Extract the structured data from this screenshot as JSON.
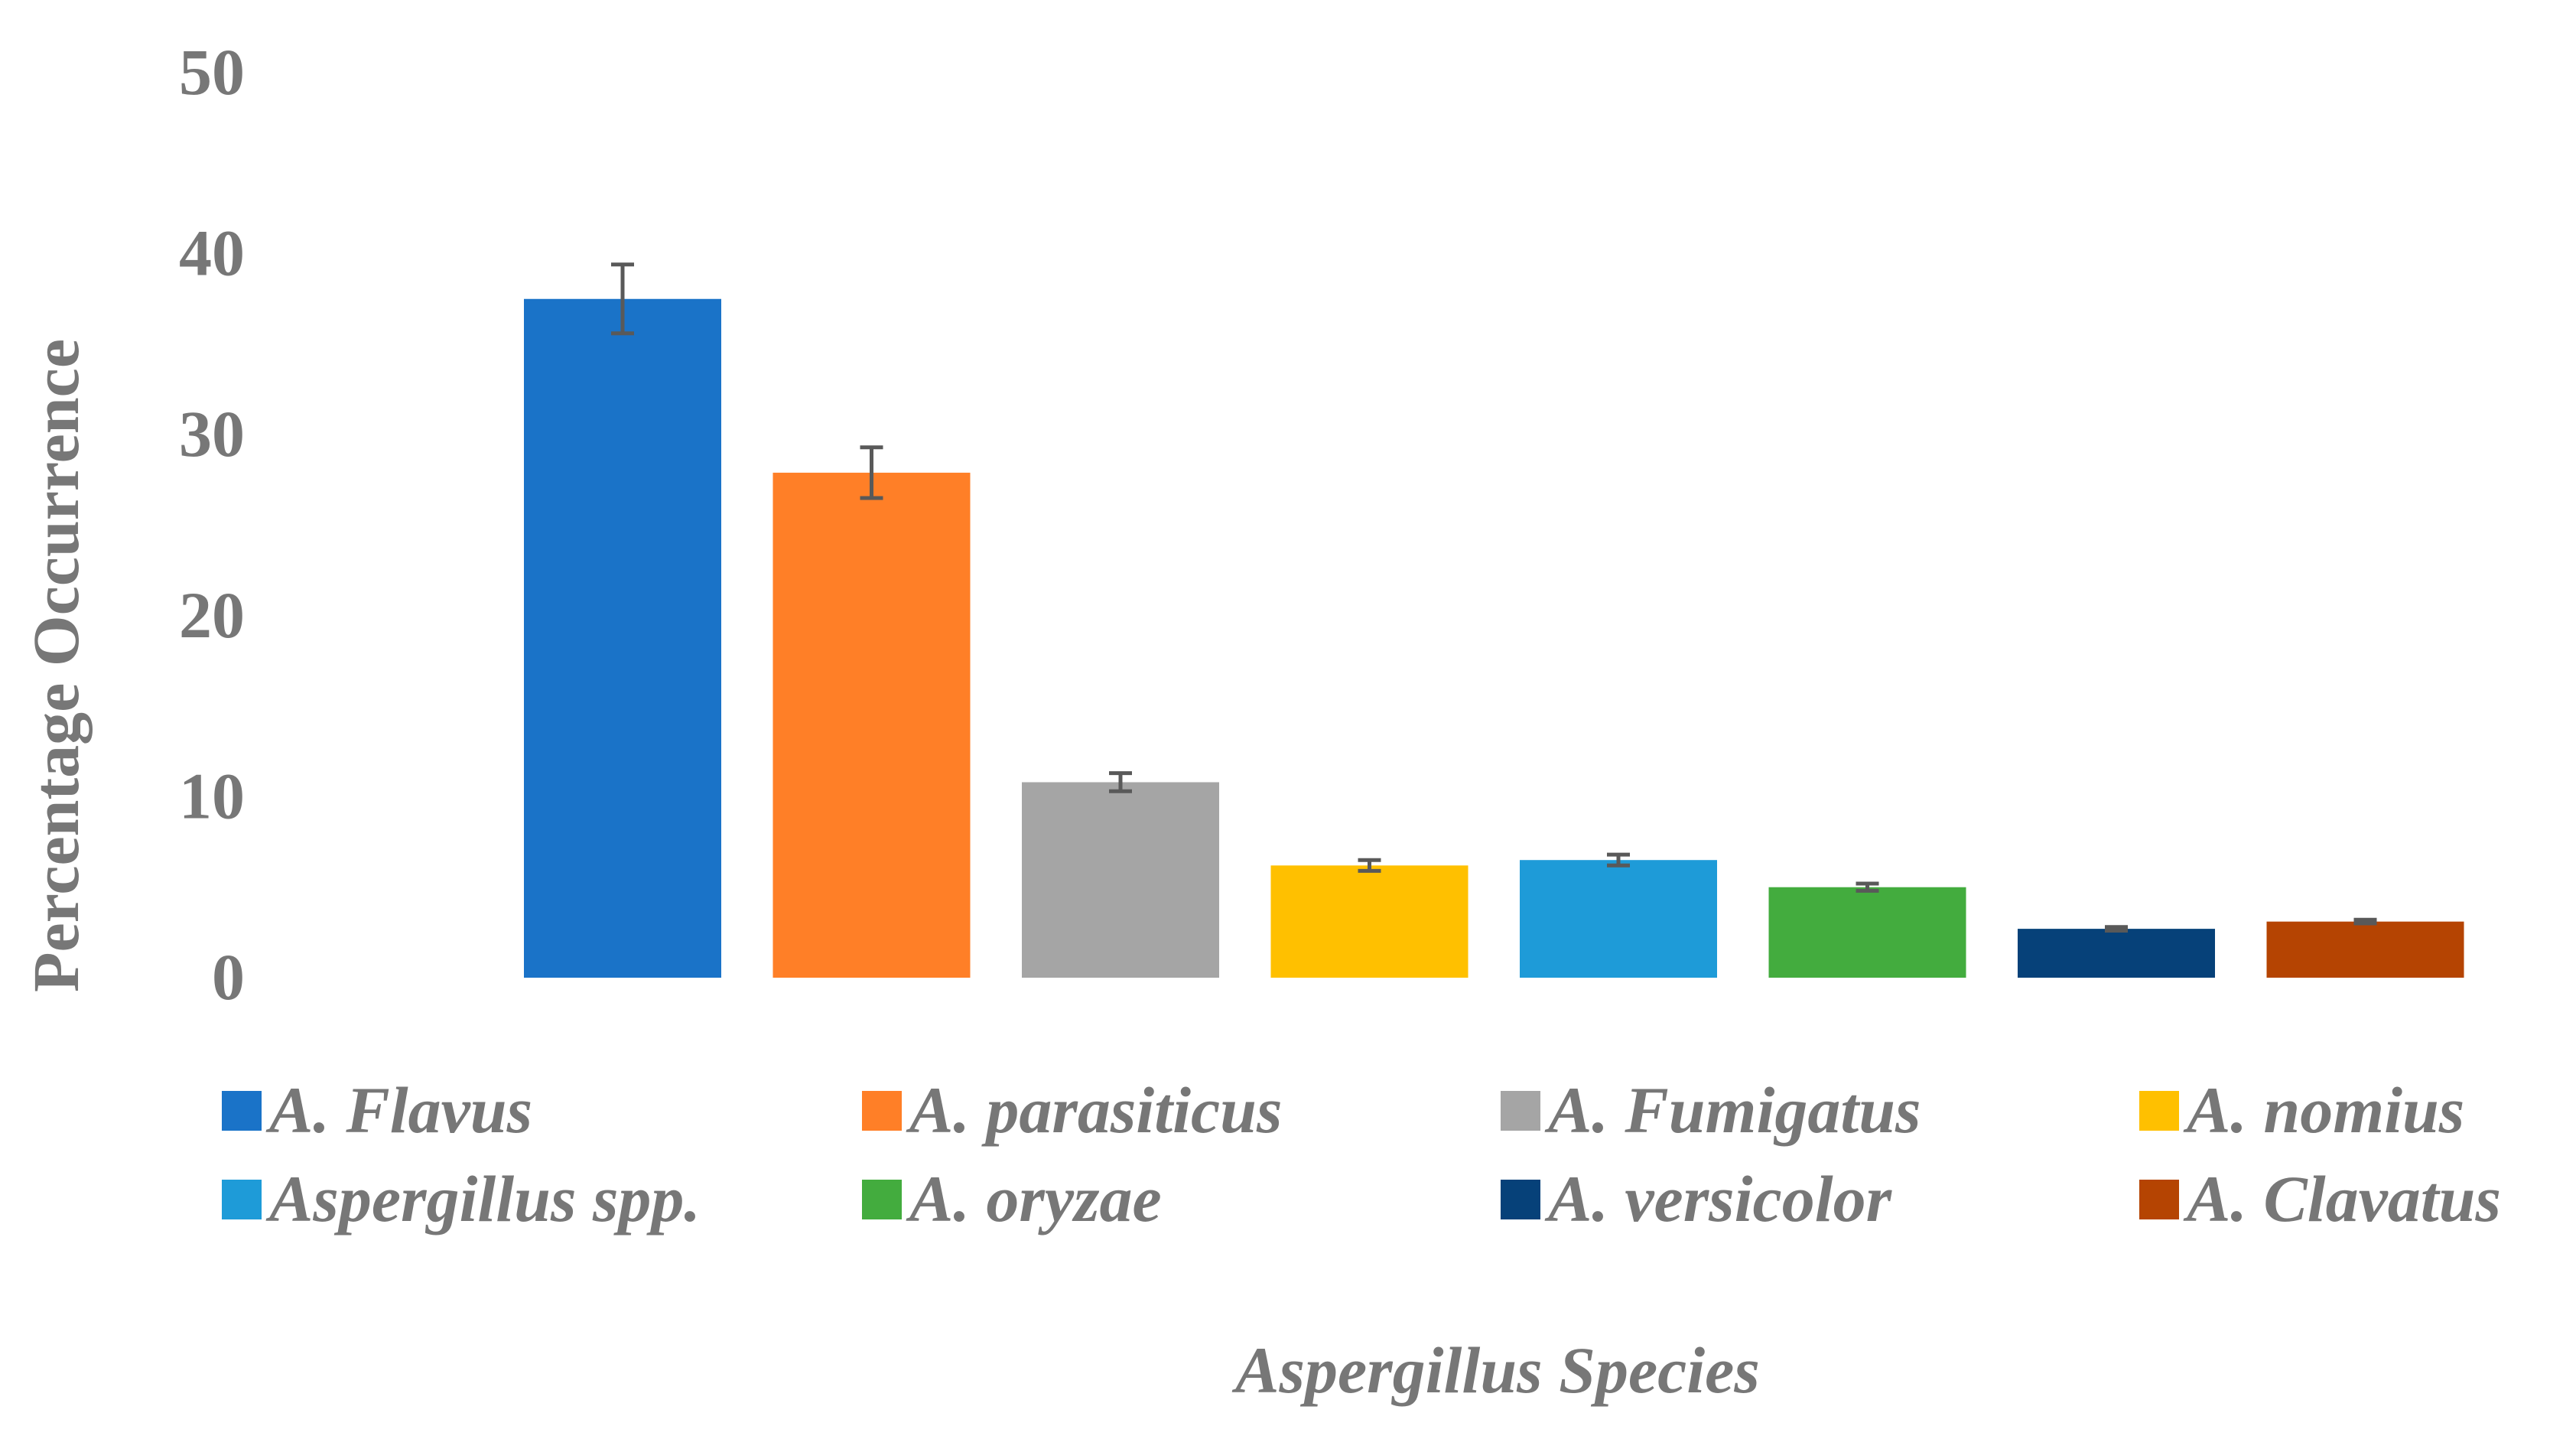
{
  "chart_data": {
    "type": "bar",
    "title": "",
    "xlabel": "Aspergillus Species",
    "ylabel": "Percentage Occurrence",
    "ylim": [
      0,
      50
    ],
    "yticks": [
      0,
      10,
      20,
      30,
      40,
      50
    ],
    "grid": false,
    "legend_position": "bottom",
    "series": [
      {
        "name": "A. Flavus",
        "value": 37.5,
        "error": 1.9,
        "color": "#1A73C8"
      },
      {
        "name": "A. parasiticus",
        "value": 27.9,
        "error": 1.4,
        "color": "#FF7F27"
      },
      {
        "name": "A. Fumigatus",
        "value": 10.8,
        "error": 0.5,
        "color": "#A5A5A5"
      },
      {
        "name": "A. nomius",
        "value": 6.2,
        "error": 0.3,
        "color": "#FFC000"
      },
      {
        "name": "Aspergillus spp.",
        "value": 6.5,
        "error": 0.3,
        "color": "#1E9BD8"
      },
      {
        "name": "A. oryzae",
        "value": 5.0,
        "error": 0.2,
        "color": "#43AC3E"
      },
      {
        "name": "A. versicolor",
        "value": 2.7,
        "error": 0.1,
        "color": "#064179"
      },
      {
        "name": "A. Clavatus",
        "value": 3.1,
        "error": 0.1,
        "color": "#B54402"
      }
    ]
  }
}
